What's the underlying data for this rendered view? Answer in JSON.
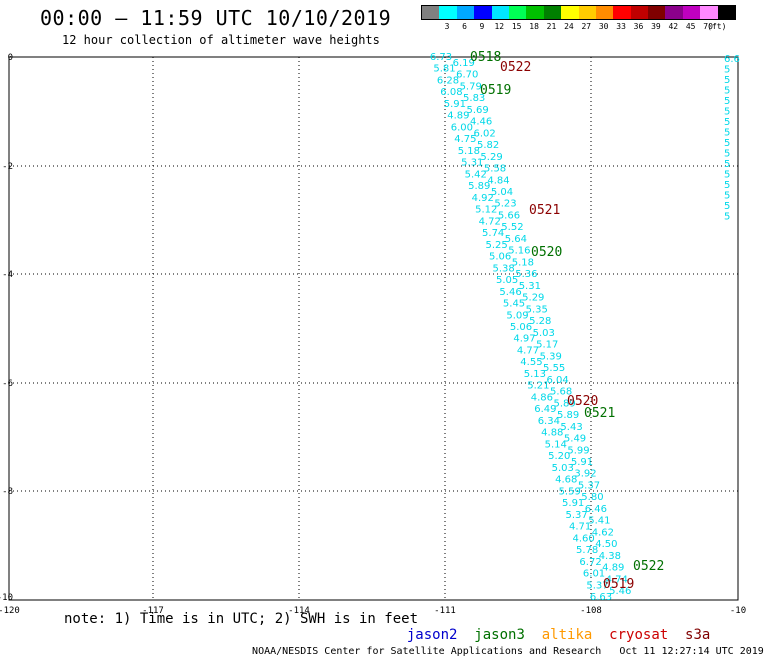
{
  "header": {
    "title": "00:00 – 11:59 UTC 10/10/2019",
    "subtitle": "12 hour collection of altimeter wave heights"
  },
  "color_scale": {
    "unit": "(ft)",
    "items": [
      {
        "label": "",
        "color": "#808080"
      },
      {
        "label": "3",
        "color": "#00ffff"
      },
      {
        "label": "6",
        "color": "#00a8ff"
      },
      {
        "label": "9",
        "color": "#0000ff"
      },
      {
        "label": "12",
        "color": "#00e6ff"
      },
      {
        "label": "15",
        "color": "#00ff55"
      },
      {
        "label": "18",
        "color": "#00c000"
      },
      {
        "label": "21",
        "color": "#008000"
      },
      {
        "label": "24",
        "color": "#ffff00"
      },
      {
        "label": "27",
        "color": "#ffcc00"
      },
      {
        "label": "30",
        "color": "#ff8c00"
      },
      {
        "label": "33",
        "color": "#ff0000"
      },
      {
        "label": "36",
        "color": "#c00000"
      },
      {
        "label": "39",
        "color": "#800000"
      },
      {
        "label": "42",
        "color": "#8b008b"
      },
      {
        "label": "45",
        "color": "#c000c0"
      },
      {
        "label": "70",
        "color": "#ff88ff"
      },
      {
        "label": "",
        "color": "#000000"
      }
    ]
  },
  "map": {
    "lon_labels": [
      "-120",
      "-117",
      "-114",
      "-111",
      "-108",
      "-10"
    ],
    "lat_labels": [
      "0",
      "-2",
      "-4",
      "-6",
      "-8",
      "-10"
    ],
    "value_color": "#00d8e8",
    "track_values": [
      "6.73",
      "6.19",
      "5.81",
      "6.70",
      "6.28",
      "5.79",
      "6.08",
      "5.83",
      "5.91",
      "5.69",
      "4.89",
      "4.46",
      "6.00",
      "6.02",
      "4.75",
      "5.82",
      "5.18",
      "5.29",
      "5.31",
      "5.58",
      "5.42",
      "4.84",
      "5.89",
      "5.04",
      "4.92",
      "5.23",
      "5.12",
      "5.66",
      "4.72",
      "5.52",
      "5.74",
      "5.64",
      "5.25",
      "5.16",
      "5.06",
      "5.18",
      "5.38",
      "5.36",
      "5.05",
      "5.31",
      "5.46",
      "5.29",
      "5.45",
      "5.35",
      "5.09",
      "5.28",
      "5.06",
      "5.03",
      "4.97",
      "5.17",
      "4.77",
      "5.39",
      "4.55",
      "5.55",
      "5.13",
      "6.04",
      "5.21",
      "5.68",
      "4.86",
      "5.89",
      "6.49",
      "5.89",
      "6.34",
      "5.43",
      "4.88",
      "5.49",
      "5.14",
      "5.99",
      "5.20",
      "5.91",
      "5.03",
      "3.92",
      "4.68",
      "5.37",
      "5.59",
      "5.80",
      "5.91",
      "6.46",
      "5.37",
      "5.41",
      "4.71",
      "4.62",
      "4.60",
      "4.50",
      "5.78",
      "4.38",
      "6.72",
      "4.89",
      "6.01",
      "4.74",
      "5.37",
      "5.46",
      "6.63"
    ],
    "right_values": [
      "6.6",
      "5",
      "5",
      "5",
      "5",
      "5",
      "5",
      "5",
      "5",
      "5",
      "5",
      "5",
      "5",
      "5",
      "5",
      "5"
    ],
    "pass_labels": [
      {
        "text": "0518",
        "color": "#007000"
      },
      {
        "text": "0522",
        "color": "#8b0000"
      },
      {
        "text": "0519",
        "color": "#007000"
      },
      {
        "text": "0521",
        "color": "#8b0000"
      },
      {
        "text": "0520",
        "color": "#007000"
      },
      {
        "text": "0520",
        "color": "#8b0000"
      },
      {
        "text": "0521",
        "color": "#007000"
      },
      {
        "text": "0522",
        "color": "#007000"
      },
      {
        "text": "0519",
        "color": "#8b0000"
      }
    ]
  },
  "note": "note: 1) Time is in UTC; 2) SWH is in feet",
  "satellites": [
    {
      "name": "jason2",
      "color": "#0000cc"
    },
    {
      "name": "jason3",
      "color": "#007000"
    },
    {
      "name": "altika",
      "color": "#ff9900"
    },
    {
      "name": "cryosat",
      "color": "#cc0000"
    },
    {
      "name": "s3a",
      "color": "#800000"
    }
  ],
  "footer": {
    "credit": "NOAA/NESDIS Center for Satellite Applications and Research",
    "timestamp": "Oct 11 12:27:14 UTC 2019"
  }
}
